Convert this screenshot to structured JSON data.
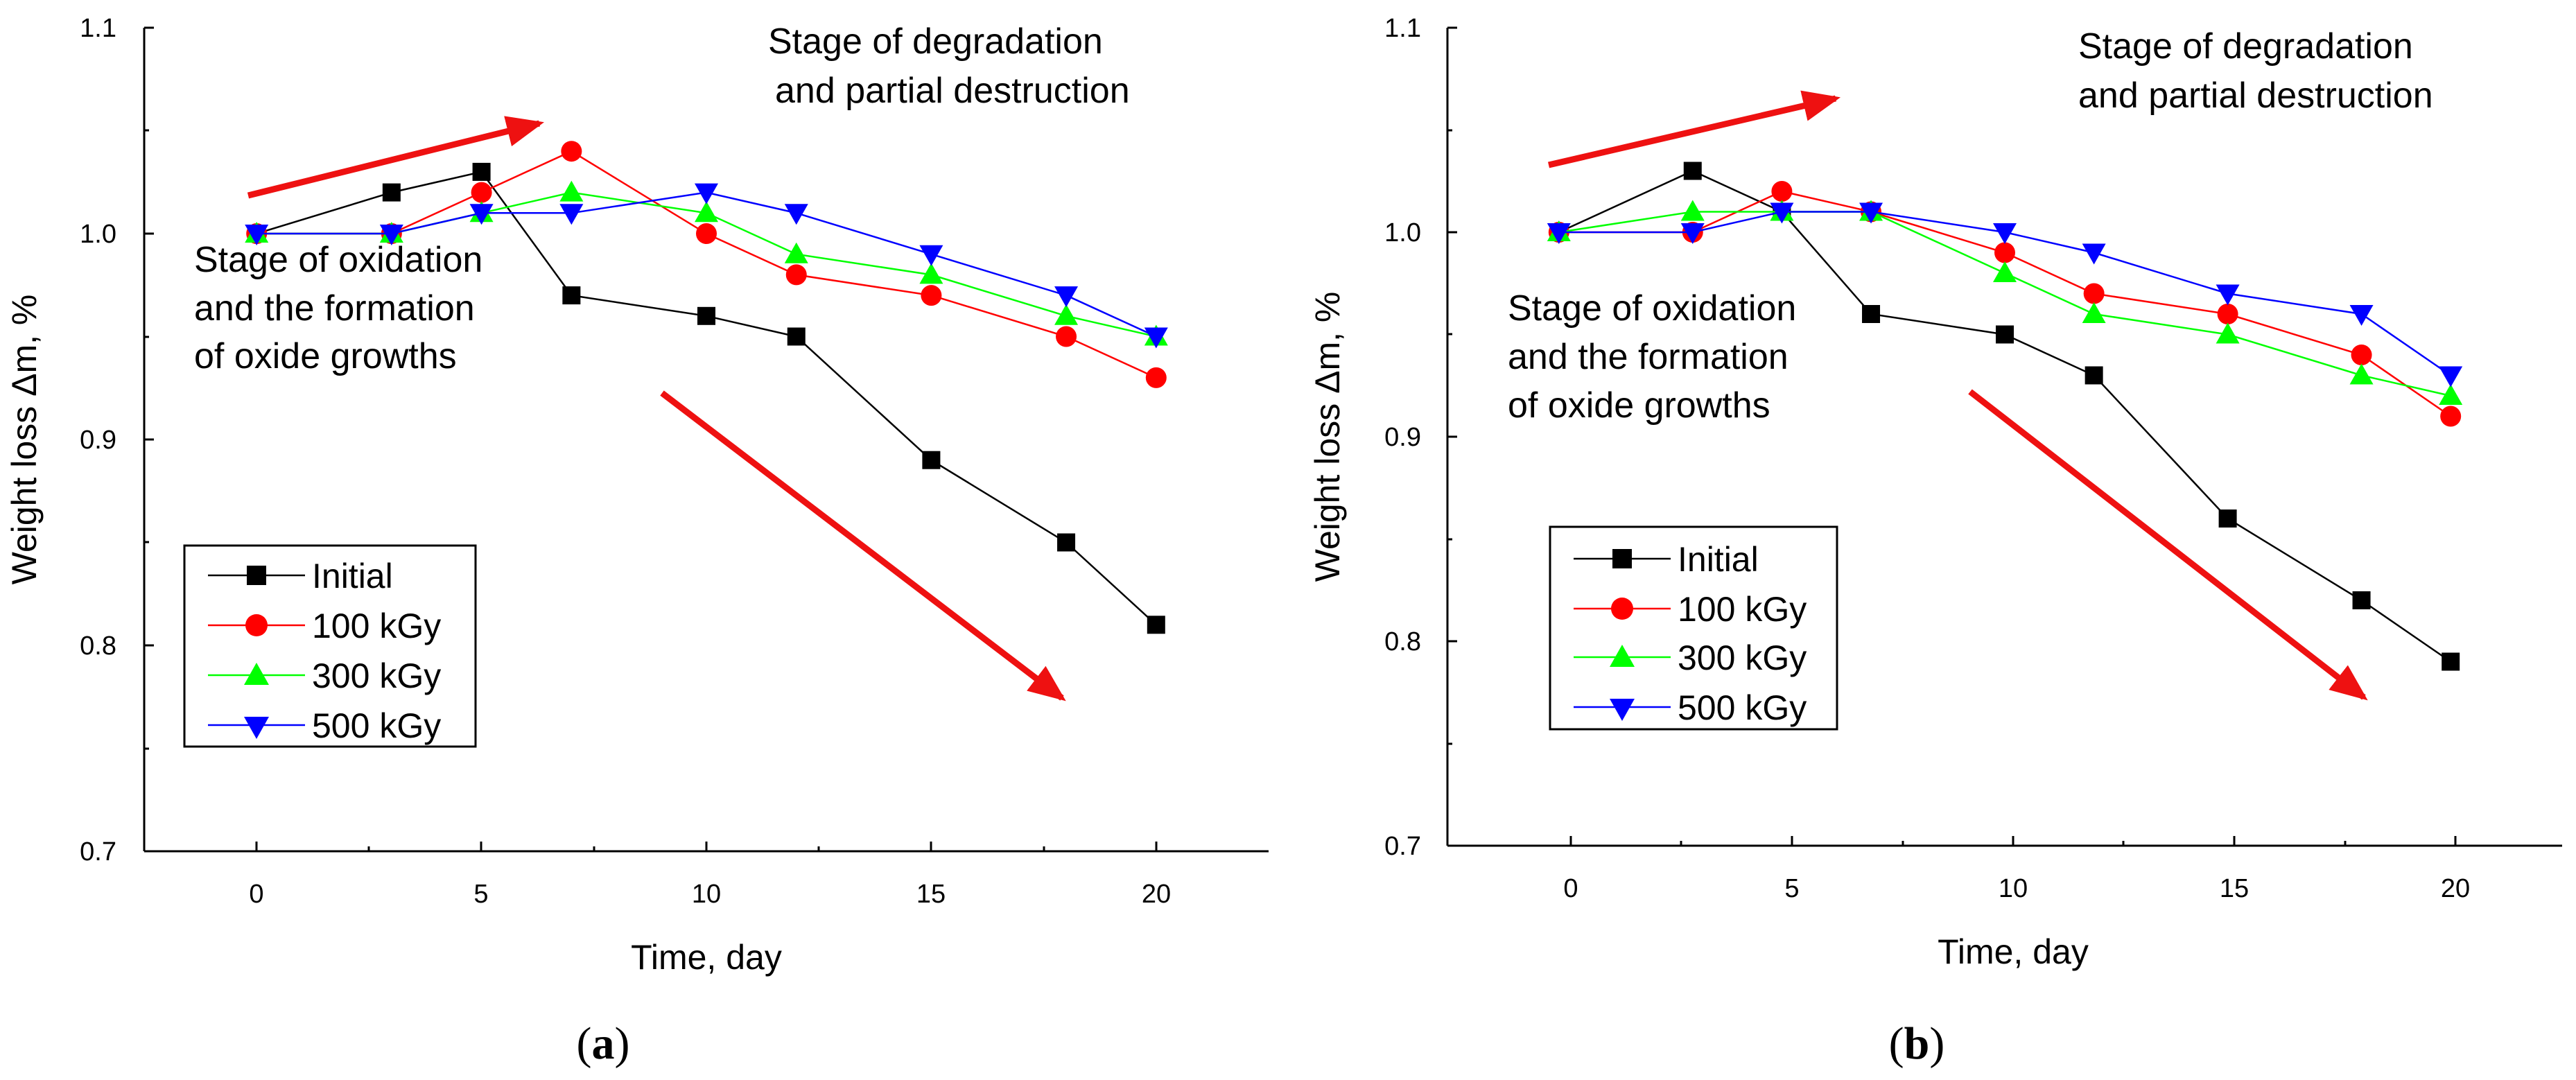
{
  "colors": {
    "initial": "#000000",
    "100 kGy": "#ff0000",
    "300 kGy": "#00ff00",
    "500 kGy": "#0000ff",
    "arrow": "#ee1111"
  },
  "chart_data": [
    {
      "type": "line",
      "panel_label": {
        "open": "(",
        "letter": "a",
        "close": ")"
      },
      "xlabel": "Time, day",
      "ylabel": "Weight loss Δm, %",
      "xlim": [
        -2.5,
        22.5
      ],
      "ylim": [
        0.7,
        1.1
      ],
      "xticks": [
        0,
        5,
        10,
        15,
        20
      ],
      "xtick_labels": [
        "0",
        "5",
        "10",
        "15",
        "20"
      ],
      "yticks": [
        0.7,
        0.8,
        0.9,
        1.0,
        1.1
      ],
      "ytick_labels": [
        "0.7",
        "0.8",
        "0.9",
        "1.0",
        "1.1"
      ],
      "legend": "lower-left",
      "annotations": {
        "degradation": [
          "Stage of degradation",
          "and partial destruction"
        ],
        "oxidation": [
          "Stage of oxidation",
          "and the formation",
          "of oxide growths"
        ]
      },
      "series": [
        {
          "name": "Initial",
          "marker": "square",
          "color_key": "initial",
          "x": [
            0,
            3,
            5,
            7,
            10,
            12,
            15,
            18,
            20
          ],
          "values": [
            1.0,
            1.02,
            1.03,
            0.97,
            0.96,
            0.95,
            0.89,
            0.85,
            0.81
          ]
        },
        {
          "name": "100 kGy",
          "marker": "circle",
          "color_key": "100 kGy",
          "x": [
            0,
            3,
            5,
            7,
            10,
            12,
            15,
            18,
            20
          ],
          "values": [
            1.0,
            1.0,
            1.02,
            1.04,
            1.0,
            0.98,
            0.97,
            0.95,
            0.93
          ]
        },
        {
          "name": "300 kGy",
          "marker": "triangle-up",
          "color_key": "300 kGy",
          "x": [
            0,
            3,
            5,
            7,
            10,
            12,
            15,
            18,
            20
          ],
          "values": [
            1.0,
            1.0,
            1.01,
            1.02,
            1.01,
            0.99,
            0.98,
            0.96,
            0.95
          ]
        },
        {
          "name": "500 kGy",
          "marker": "triangle-down",
          "color_key": "500 kGy",
          "x": [
            0,
            3,
            5,
            7,
            10,
            12,
            15,
            18,
            20
          ],
          "values": [
            1.0,
            1.0,
            1.01,
            1.01,
            1.02,
            1.01,
            0.99,
            0.97,
            0.95
          ]
        }
      ]
    },
    {
      "type": "line",
      "panel_label": {
        "open": "(",
        "letter": "b",
        "close": ")"
      },
      "xlabel": "Time, day",
      "ylabel": "Weight loss Δm, %",
      "xlim": [
        -2.5,
        22.5
      ],
      "ylim": [
        0.7,
        1.1
      ],
      "xticks": [
        0,
        5,
        10,
        15,
        20
      ],
      "xtick_labels": [
        "0",
        "5",
        "10",
        "15",
        "20"
      ],
      "yticks": [
        0.7,
        0.8,
        0.9,
        1.0,
        1.1
      ],
      "ytick_labels": [
        "0.7",
        "0.8",
        "0.9",
        "1.0",
        "1.1"
      ],
      "legend": "lower-left",
      "annotations": {
        "degradation": [
          "Stage of degradation",
          "and partial destruction"
        ],
        "oxidation": [
          "Stage of oxidation",
          "and the formation",
          "of oxide growths"
        ]
      },
      "series": [
        {
          "name": "Initial",
          "marker": "square",
          "color_key": "initial",
          "x": [
            0,
            3,
            5,
            7,
            10,
            12,
            15,
            18,
            20
          ],
          "values": [
            1.0,
            1.03,
            1.01,
            0.96,
            0.95,
            0.93,
            0.86,
            0.82,
            0.79
          ]
        },
        {
          "name": "100 kGy",
          "marker": "circle",
          "color_key": "100 kGy",
          "x": [
            0,
            3,
            5,
            7,
            10,
            12,
            15,
            18,
            20
          ],
          "values": [
            1.0,
            1.0,
            1.02,
            1.01,
            0.99,
            0.97,
            0.96,
            0.94,
            0.91
          ]
        },
        {
          "name": "300 kGy",
          "marker": "triangle-up",
          "color_key": "300 kGy",
          "x": [
            0,
            3,
            5,
            7,
            10,
            12,
            15,
            18,
            20
          ],
          "values": [
            1.0,
            1.01,
            1.01,
            1.01,
            0.98,
            0.96,
            0.95,
            0.93,
            0.92
          ]
        },
        {
          "name": "500 kGy",
          "marker": "triangle-down",
          "color_key": "500 kGy",
          "x": [
            0,
            3,
            5,
            7,
            10,
            12,
            15,
            18,
            20
          ],
          "values": [
            1.0,
            1.0,
            1.01,
            1.01,
            1.0,
            0.99,
            0.97,
            0.96,
            0.93
          ]
        }
      ]
    }
  ]
}
